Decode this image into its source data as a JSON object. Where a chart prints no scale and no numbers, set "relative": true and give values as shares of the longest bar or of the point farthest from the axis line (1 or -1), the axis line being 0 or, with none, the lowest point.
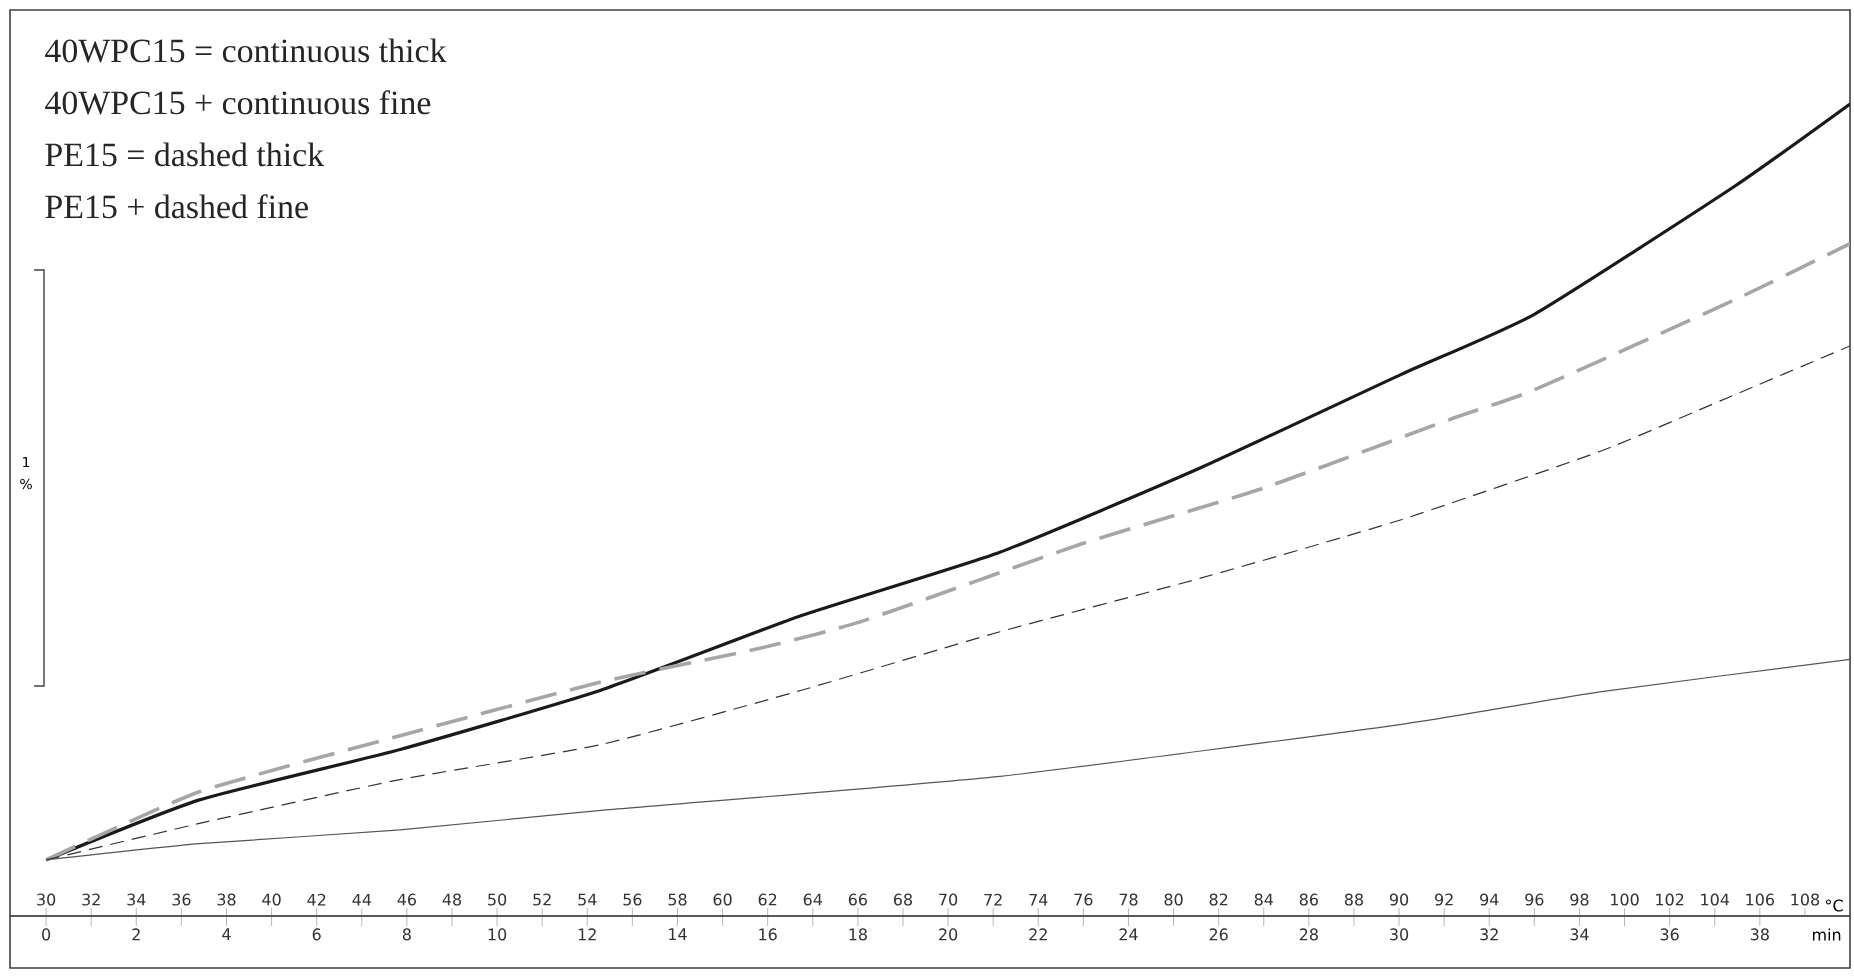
{
  "chart_data": {
    "type": "line",
    "relative": true,
    "xlabel": "°C",
    "x2label": "min",
    "xlim": [
      28.4,
      110
    ],
    "xticks": [
      30,
      32,
      34,
      36,
      38,
      40,
      42,
      44,
      46,
      48,
      50,
      52,
      54,
      56,
      58,
      60,
      62,
      64,
      66,
      68,
      70,
      72,
      74,
      76,
      78,
      80,
      82,
      84,
      86,
      88,
      90,
      92,
      94,
      96,
      98,
      100,
      102,
      104,
      106,
      108
    ],
    "x2lim": [
      -0.8,
      40
    ],
    "x2ticks": [
      0,
      {
        "value": 1,
        "label": null
      },
      2,
      {
        "value": 3,
        "label": null
      },
      4,
      {
        "value": 5,
        "label": null
      },
      6,
      {
        "value": 7,
        "label": null
      },
      8,
      {
        "value": 9,
        "label": null
      },
      10,
      {
        "value": 11,
        "label": null
      },
      12,
      {
        "value": 13,
        "label": null
      },
      14,
      {
        "value": 15,
        "label": null
      },
      16,
      {
        "value": 17,
        "label": null
      },
      18,
      {
        "value": 19,
        "label": null
      },
      20,
      {
        "value": 21,
        "label": null
      },
      22,
      {
        "value": 23,
        "label": null
      },
      24,
      {
        "value": 25,
        "label": null
      },
      26,
      {
        "value": 27,
        "label": null
      },
      28,
      {
        "value": 29,
        "label": null
      },
      30,
      {
        "value": 31,
        "label": null
      },
      32,
      {
        "value": 33,
        "label": null
      },
      34,
      {
        "value": 35,
        "label": null
      },
      36,
      {
        "value": 37,
        "label": null
      },
      38
    ],
    "annotations": [
      "40WPC15 = continuous thick",
      "40WPC15 + continuous fine",
      "PE15 = dashed thick",
      "PE15 + dashed fine",
      "1",
      "%"
    ],
    "series": [
      {
        "color": "#1a1a1a",
        "line_style": "solid",
        "x": [
          30,
          36.8,
          45.7,
          54.6,
          63.5,
          72.3,
          81.2,
          90.1,
          96,
          104.9,
          110
        ],
        "values": [
          0.069,
          0.143,
          0.205,
          0.278,
          0.37,
          0.448,
          0.552,
          0.667,
          0.741,
          0.899,
          1
        ]
      },
      {
        "color": "#555555",
        "line_style": "solid",
        "x": [
          30,
          36.8,
          45.7,
          54.6,
          72.3,
          90.1,
          98.9,
          110
        ],
        "values": [
          0.069,
          0.089,
          0.106,
          0.13,
          0.172,
          0.236,
          0.276,
          0.316
        ]
      },
      {
        "color": "#a6a6a6",
        "line_style": "dashed",
        "x": [
          30,
          36.8,
          45.7,
          54.6,
          61.7,
          66.3,
          75.9,
          84.0,
          92.2,
          96.0,
          104.9,
          110
        ],
        "values": [
          0.069,
          0.153,
          0.222,
          0.288,
          0.33,
          0.364,
          0.458,
          0.527,
          0.611,
          0.648,
          0.759,
          0.828
        ]
      },
      {
        "color": "#333333",
        "line_style": "dashed",
        "x": [
          30,
          36.8,
          45.7,
          54.6,
          63.5,
          72.3,
          81.2,
          90.1,
          98.9,
          104.3,
          110
        ],
        "values": [
          0.069,
          0.114,
          0.168,
          0.211,
          0.278,
          0.35,
          0.416,
          0.488,
          0.572,
          0.635,
          0.702
        ]
      }
    ]
  }
}
